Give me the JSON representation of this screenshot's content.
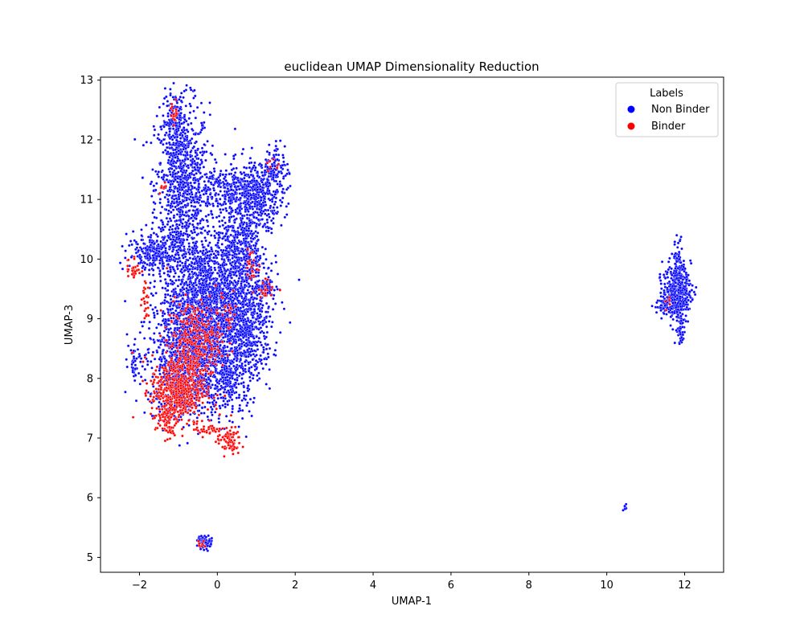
{
  "chart_data": {
    "type": "scatter",
    "title": "euclidean UMAP Dimensionality Reduction",
    "xlabel": "UMAP-1",
    "ylabel": "UMAP-3",
    "xlim": [
      -3,
      13
    ],
    "ylim": [
      4.75,
      13.05
    ],
    "xticks": [
      -2,
      0,
      2,
      4,
      6,
      8,
      10,
      12
    ],
    "yticks": [
      5,
      6,
      7,
      8,
      9,
      10,
      11,
      12,
      13
    ],
    "xtick_labels": [
      "−2",
      "0",
      "2",
      "4",
      "6",
      "8",
      "10",
      "12"
    ],
    "ytick_labels": [
      "5",
      "6",
      "7",
      "8",
      "9",
      "10",
      "11",
      "12",
      "13"
    ],
    "grid": false,
    "legend": {
      "title": "Labels",
      "placement": "top-right",
      "entries": [
        "Non Binder",
        "Binder"
      ]
    },
    "series": [
      {
        "name": "Non Binder",
        "color": "#0000ff",
        "clusters": [
          {
            "cx": -0.9,
            "cy": 11.2,
            "sx": 0.35,
            "sy": 0.7,
            "n": 900
          },
          {
            "cx": -1.1,
            "cy": 12.3,
            "sx": 0.15,
            "sy": 0.25,
            "n": 150
          },
          {
            "cx": -0.3,
            "cy": 9.2,
            "sx": 0.55,
            "sy": 0.6,
            "n": 1800
          },
          {
            "cx": 0.6,
            "cy": 10.2,
            "sx": 0.35,
            "sy": 0.6,
            "n": 700
          },
          {
            "cx": 1.1,
            "cy": 11.1,
            "sx": 0.3,
            "sy": 0.25,
            "n": 300
          },
          {
            "cx": 1.5,
            "cy": 11.5,
            "sx": 0.15,
            "sy": 0.25,
            "n": 100
          },
          {
            "cx": 0.2,
            "cy": 11.2,
            "sx": 0.4,
            "sy": 0.15,
            "n": 200
          },
          {
            "cx": -1.6,
            "cy": 10.1,
            "sx": 0.35,
            "sy": 0.15,
            "n": 250
          },
          {
            "cx": 0.8,
            "cy": 8.8,
            "sx": 0.3,
            "sy": 0.4,
            "n": 400
          },
          {
            "cx": -0.8,
            "cy": 8.2,
            "sx": 0.5,
            "sy": 0.45,
            "n": 800
          },
          {
            "cx": 0.3,
            "cy": 8.0,
            "sx": 0.3,
            "sy": 0.35,
            "n": 300
          },
          {
            "cx": -2.1,
            "cy": 8.3,
            "sx": 0.08,
            "sy": 0.15,
            "n": 40
          },
          {
            "cx": 1.2,
            "cy": 9.5,
            "sx": 0.2,
            "sy": 0.1,
            "n": 60
          },
          {
            "cx": 11.8,
            "cy": 9.45,
            "sx": 0.18,
            "sy": 0.22,
            "n": 400
          },
          {
            "cx": 11.85,
            "cy": 9.95,
            "sx": 0.07,
            "sy": 0.2,
            "n": 70
          },
          {
            "cx": 11.9,
            "cy": 8.8,
            "sx": 0.07,
            "sy": 0.12,
            "n": 45
          },
          {
            "cx": 11.45,
            "cy": 9.2,
            "sx": 0.15,
            "sy": 0.08,
            "n": 40
          },
          {
            "cx": 10.47,
            "cy": 5.82,
            "sx": 0.03,
            "sy": 0.03,
            "n": 8
          },
          {
            "cx": -0.3,
            "cy": 5.25,
            "sx": 0.1,
            "sy": 0.06,
            "n": 60
          }
        ]
      },
      {
        "name": "Binder",
        "color": "#ff0000",
        "clusters": [
          {
            "cx": -1.0,
            "cy": 7.8,
            "sx": 0.35,
            "sy": 0.3,
            "n": 500
          },
          {
            "cx": -0.6,
            "cy": 8.6,
            "sx": 0.35,
            "sy": 0.35,
            "n": 300
          },
          {
            "cx": -1.3,
            "cy": 7.3,
            "sx": 0.12,
            "sy": 0.15,
            "n": 60
          },
          {
            "cx": 0.3,
            "cy": 6.95,
            "sx": 0.15,
            "sy": 0.12,
            "n": 80
          },
          {
            "cx": -0.3,
            "cy": 7.15,
            "sx": 0.15,
            "sy": 0.06,
            "n": 30
          },
          {
            "cx": -2.15,
            "cy": 9.85,
            "sx": 0.1,
            "sy": 0.12,
            "n": 30
          },
          {
            "cx": -1.85,
            "cy": 9.3,
            "sx": 0.05,
            "sy": 0.15,
            "n": 25
          },
          {
            "cx": -1.1,
            "cy": 12.45,
            "sx": 0.05,
            "sy": 0.1,
            "n": 20
          },
          {
            "cx": -1.4,
            "cy": 11.2,
            "sx": 0.05,
            "sy": 0.05,
            "n": 10
          },
          {
            "cx": 0.9,
            "cy": 9.9,
            "sx": 0.1,
            "sy": 0.15,
            "n": 25
          },
          {
            "cx": 1.3,
            "cy": 9.5,
            "sx": 0.12,
            "sy": 0.08,
            "n": 20
          },
          {
            "cx": 0.2,
            "cy": 9.1,
            "sx": 0.2,
            "sy": 0.2,
            "n": 30
          },
          {
            "cx": -0.4,
            "cy": 5.22,
            "sx": 0.06,
            "sy": 0.04,
            "n": 8
          },
          {
            "cx": 1.4,
            "cy": 11.6,
            "sx": 0.08,
            "sy": 0.1,
            "n": 8
          },
          {
            "cx": 11.6,
            "cy": 9.3,
            "sx": 0.1,
            "sy": 0.08,
            "n": 5
          }
        ]
      }
    ]
  }
}
